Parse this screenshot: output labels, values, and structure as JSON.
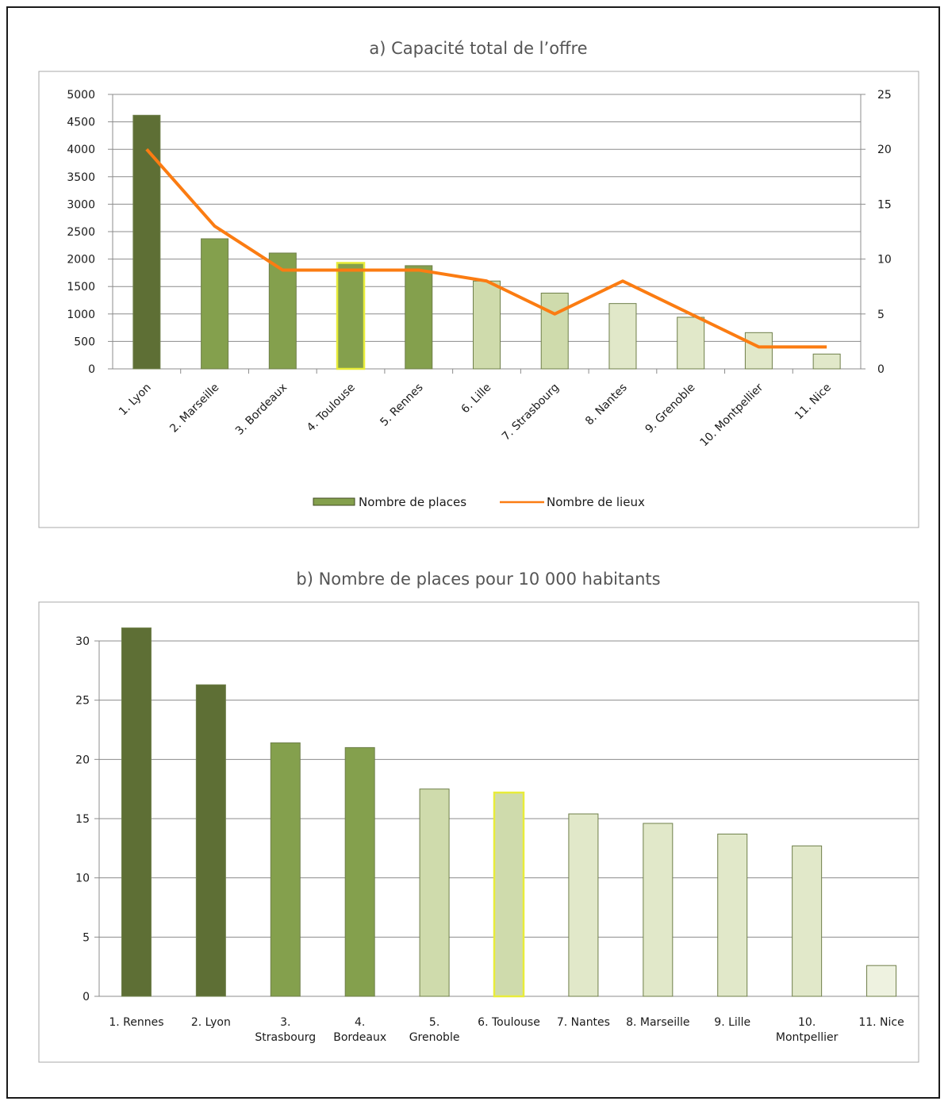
{
  "colors": {
    "dark": "#5e6f35",
    "mid": "#84a04d",
    "light": "#cfdbac",
    "pale": "#e1e8c9",
    "lightest": "#eef2e0",
    "highlight": "#e8ec3a",
    "line": "#fb7c12",
    "grid": "#8c8c8c",
    "border": "#a8a8a8",
    "text": "#1a1a1a",
    "title": "#555555"
  },
  "chart_data": [
    {
      "type": "bar",
      "title": "a) Capacité total de l’offre",
      "categories": [
        "1. Lyon",
        "2. Marseille",
        "3. Bordeaux",
        "4. Toulouse",
        "5. Rennes",
        "6. Lille",
        "7. Strasbourg",
        "8. Nantes",
        "9. Grenoble",
        "10. Montpellier",
        "11. Nice"
      ],
      "series": [
        {
          "name": "Nombre de places",
          "axis": "left",
          "values": [
            4620,
            2370,
            2110,
            1930,
            1880,
            1600,
            1380,
            1190,
            940,
            660,
            270
          ],
          "bar_colors": [
            "dark",
            "mid",
            "mid",
            "mid",
            "mid",
            "light",
            "light",
            "pale",
            "pale",
            "pale",
            "pale"
          ],
          "highlight": "4. Toulouse"
        },
        {
          "name": "Nombre de lieux",
          "type": "line",
          "axis": "right",
          "values": [
            20,
            13,
            9,
            9,
            9,
            8,
            5,
            8,
            5,
            2,
            2
          ]
        }
      ],
      "ylim": [
        0,
        5000
      ],
      "yticks": [
        "0",
        "500",
        "1000",
        "1500",
        "2000",
        "2500",
        "3000",
        "3500",
        "4000",
        "4500",
        "5000"
      ],
      "y2lim": [
        0,
        25
      ],
      "y2ticks": [
        "0",
        "5",
        "10",
        "15",
        "20",
        "25"
      ],
      "grid": true,
      "legend": "bottom"
    },
    {
      "type": "bar",
      "title": "b) Nombre de places pour 10 000 habitants",
      "categories": [
        "1. Rennes",
        "2. Lyon",
        "3. Strasbourg",
        "4. Bordeaux",
        "5. Grenoble",
        "6. Toulouse",
        "7. Nantes",
        "8. Marseille",
        "9. Lille",
        "10. Montpellier",
        "11. Nice"
      ],
      "category_lines": [
        [
          "1. Rennes"
        ],
        [
          "2. Lyon"
        ],
        [
          "3.",
          "Strasbourg"
        ],
        [
          "4.",
          "Bordeaux"
        ],
        [
          "5.",
          "Grenoble"
        ],
        [
          "6. Toulouse"
        ],
        [
          "7. Nantes"
        ],
        [
          "8. Marseille"
        ],
        [
          "9. Lille"
        ],
        [
          "10.",
          "Montpellier"
        ],
        [
          "11. Nice"
        ]
      ],
      "values": [
        31.1,
        26.3,
        21.4,
        21.0,
        17.5,
        17.2,
        15.4,
        14.6,
        13.7,
        12.7,
        2.6
      ],
      "bar_colors": [
        "dark",
        "dark",
        "mid",
        "mid",
        "light",
        "light",
        "pale",
        "pale",
        "pale",
        "pale",
        "lightest"
      ],
      "highlight": "6. Toulouse",
      "ylim": [
        0,
        30
      ],
      "yticks": [
        "0",
        "5",
        "10",
        "15",
        "20",
        "25",
        "30"
      ],
      "grid": true
    }
  ]
}
